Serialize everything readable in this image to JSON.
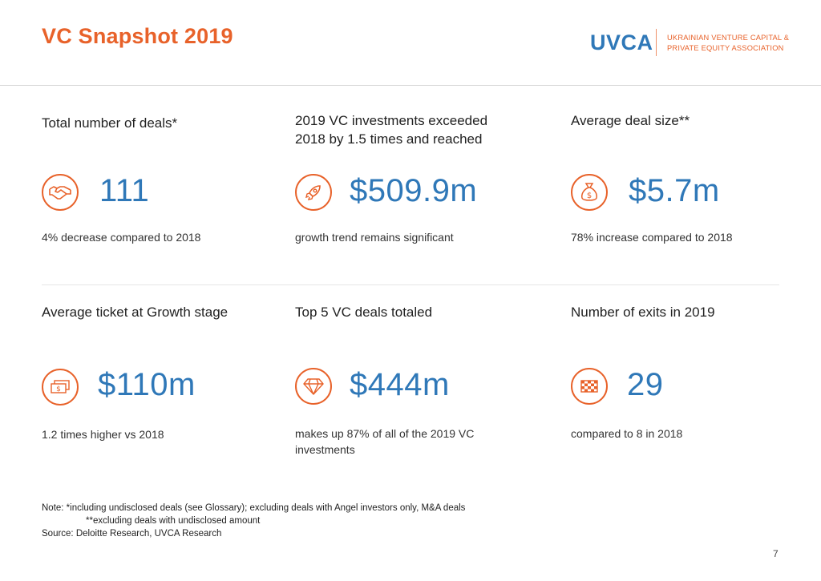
{
  "header": {
    "title": "VC Snapshot 2019",
    "logo_mark": "UVCA",
    "logo_line1": "UKRAINIAN VENTURE CAPITAL &",
    "logo_line2": "PRIVATE EQUITY ASSOCIATION"
  },
  "cards": [
    {
      "label": "Total number of deals*",
      "value": "111",
      "note": "4% decrease compared to 2018",
      "icon": "handshake-icon"
    },
    {
      "label": "2019 VC investments exceeded 2018 by 1.5 times and reached",
      "value": "$509.9m",
      "note": "growth trend remains significant",
      "icon": "rocket-icon"
    },
    {
      "label": "Average deal size**",
      "value": "$5.7m",
      "note": "78% increase compared to 2018",
      "icon": "money-bag-icon"
    },
    {
      "label": "Average ticket at Growth stage",
      "value": "$110m",
      "note": "1.2 times higher vs 2018",
      "icon": "banknotes-icon"
    },
    {
      "label": "Top 5 VC deals totaled",
      "value": "$444m",
      "note": "makes up 87% of all of the 2019 VC investments",
      "icon": "diamond-icon"
    },
    {
      "label": "Number of exits in 2019",
      "value": "29",
      "note": "compared to 8 in 2018",
      "icon": "checkered-flag-icon"
    }
  ],
  "footnote": {
    "line1": "Note: *including undisclosed deals (see Glossary); excluding deals with Angel investors only, M&A deals",
    "line2": "**excluding deals with undisclosed amount",
    "line3": "Source: Deloitte Research, UVCA Research"
  },
  "page_number": "7",
  "colors": {
    "accent": "#e8622a",
    "value": "#2f78b8"
  }
}
